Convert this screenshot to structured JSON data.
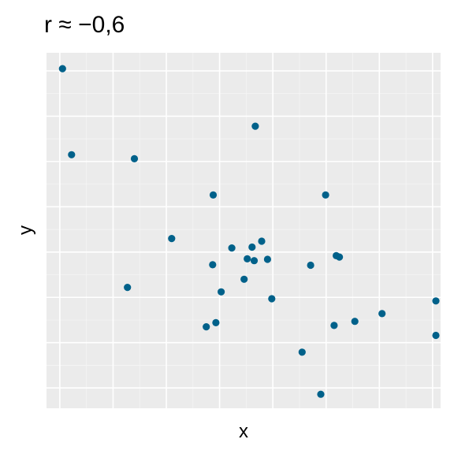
{
  "chart_data": {
    "type": "scatter",
    "title": "r ≈ −0,6",
    "xlabel": "x",
    "ylabel": "y",
    "xlim": [
      -0.25,
      7.15
    ],
    "ylim": [
      -0.45,
      7.4
    ],
    "grid": true,
    "x_tick_labels_shown": false,
    "y_tick_labels_shown": false,
    "legend": "none",
    "colors": {
      "panel_background": "#ebebeb",
      "grid_major": "#ffffff",
      "grid_minor": "#f5f5f5",
      "point": "#00618a"
    },
    "points": [
      {
        "x": 0.05,
        "y": 7.05
      },
      {
        "x": 0.22,
        "y": 5.15
      },
      {
        "x": 1.27,
        "y": 2.22
      },
      {
        "x": 1.4,
        "y": 5.06
      },
      {
        "x": 2.1,
        "y": 3.3
      },
      {
        "x": 2.75,
        "y": 1.35
      },
      {
        "x": 2.87,
        "y": 2.72
      },
      {
        "x": 2.88,
        "y": 4.26
      },
      {
        "x": 2.93,
        "y": 1.44
      },
      {
        "x": 3.03,
        "y": 2.12
      },
      {
        "x": 3.23,
        "y": 3.09
      },
      {
        "x": 3.46,
        "y": 2.4
      },
      {
        "x": 3.52,
        "y": 2.85
      },
      {
        "x": 3.61,
        "y": 3.11
      },
      {
        "x": 3.65,
        "y": 2.81
      },
      {
        "x": 3.67,
        "y": 5.78
      },
      {
        "x": 3.79,
        "y": 3.24
      },
      {
        "x": 3.9,
        "y": 2.84
      },
      {
        "x": 3.98,
        "y": 1.97
      },
      {
        "x": 4.55,
        "y": 0.79
      },
      {
        "x": 4.71,
        "y": 2.71
      },
      {
        "x": 4.9,
        "y": -0.14
      },
      {
        "x": 4.99,
        "y": 4.26
      },
      {
        "x": 5.15,
        "y": 1.38
      },
      {
        "x": 5.19,
        "y": 2.92
      },
      {
        "x": 5.25,
        "y": 2.89
      },
      {
        "x": 5.54,
        "y": 1.47
      },
      {
        "x": 6.05,
        "y": 1.64
      },
      {
        "x": 7.2,
        "y": 1.92
      },
      {
        "x": 7.26,
        "y": 1.16
      }
    ]
  }
}
